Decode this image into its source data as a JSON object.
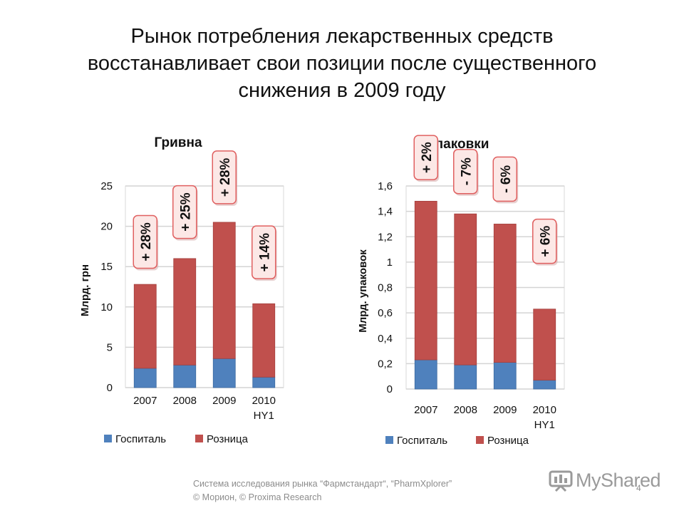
{
  "slide": {
    "title": "Рынок потребления лекарственных средств\nвосстанавливает свои позиции после существенного\nснижения в 2009 году",
    "footer": "Система исследования рынка “Фармстандарт“, “PharmXplorer”\n© Морион, © Proxima Research",
    "page_number": "4",
    "watermark": "MyShared"
  },
  "colors": {
    "hospital": "#4f81bd",
    "retail": "#c0504d",
    "badge_fill": "#fce8e6",
    "badge_border": "#e06060",
    "grid": "#d4d4d4"
  },
  "chart_data": [
    {
      "type": "bar",
      "stacked": true,
      "title": "Гривна",
      "ylabel": "Млрд. грн",
      "ylim": [
        0,
        25
      ],
      "yticks": [
        "0",
        "5",
        "10",
        "15",
        "20",
        "25"
      ],
      "ytick_values": [
        0,
        5,
        10,
        15,
        20,
        25
      ],
      "categories": [
        [
          "2007"
        ],
        [
          "2008"
        ],
        [
          "2009"
        ],
        [
          "2010",
          "HY1"
        ]
      ],
      "series": [
        {
          "name": "Госпиталь",
          "color": "#4f81bd",
          "values": [
            2.4,
            2.8,
            3.6,
            1.3
          ]
        },
        {
          "name": "Розница",
          "color": "#c0504d",
          "values": [
            10.4,
            13.2,
            16.9,
            9.1
          ]
        }
      ],
      "annotations": [
        "+ 28%",
        "+ 25%",
        "+ 28%",
        "+ 14%"
      ],
      "annotation_anchor": [
        14.8,
        18.5,
        22.8,
        13.5
      ],
      "grid": true,
      "legend": "bottom"
    },
    {
      "type": "bar",
      "stacked": true,
      "title": "Упаковки",
      "ylabel": "Млрд. упаковок",
      "ylim": [
        0,
        1.6
      ],
      "yticks": [
        "0",
        "0,2",
        "0,4",
        "0,6",
        "0,8",
        "1",
        "1,2",
        "1,4",
        "1,6"
      ],
      "ytick_values": [
        0,
        0.2,
        0.4,
        0.6,
        0.8,
        1,
        1.2,
        1.4,
        1.6
      ],
      "categories": [
        [
          "2007"
        ],
        [
          "2008"
        ],
        [
          "2009"
        ],
        [
          "2010",
          "HY1"
        ]
      ],
      "series": [
        {
          "name": "Госпиталь",
          "color": "#4f81bd",
          "values": [
            0.23,
            0.19,
            0.21,
            0.07
          ]
        },
        {
          "name": "Розница",
          "color": "#c0504d",
          "values": [
            1.25,
            1.19,
            1.09,
            0.56
          ]
        }
      ],
      "annotations": [
        "+ 2%",
        "- 7%",
        "- 6%",
        "+ 6%"
      ],
      "annotation_anchor": [
        1.65,
        1.54,
        1.48,
        0.99
      ],
      "grid": true,
      "legend": "bottom"
    }
  ]
}
